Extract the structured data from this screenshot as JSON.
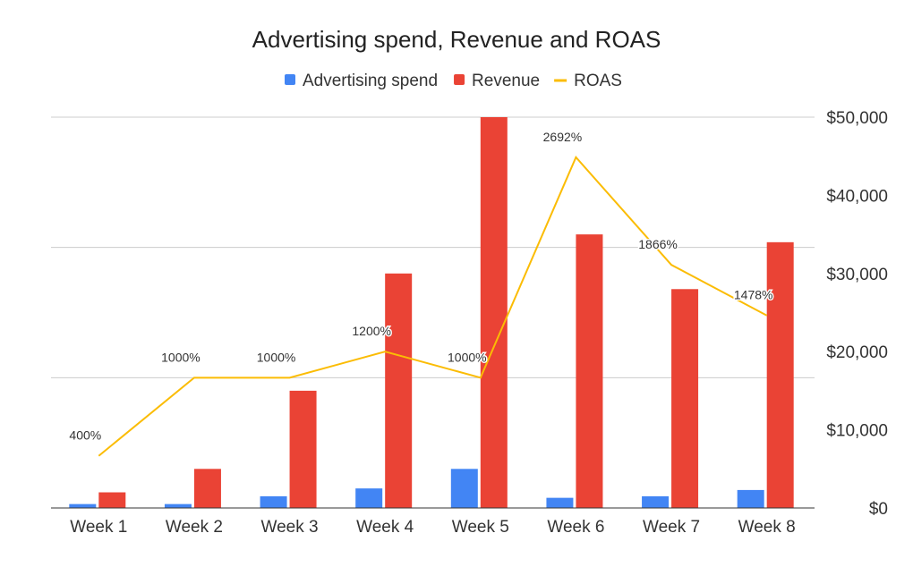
{
  "chart_data": {
    "type": "bar+line",
    "title": "Advertising spend, Revenue and ROAS",
    "categories": [
      "Week 1",
      "Week 2",
      "Week 3",
      "Week 4",
      "Week 5",
      "Week 6",
      "Week 7",
      "Week 8"
    ],
    "series": [
      {
        "name": "Advertising spend",
        "type": "bar",
        "axis": "right",
        "color": "#4285F4",
        "values": [
          500,
          500,
          1500,
          2500,
          5000,
          1300,
          1500,
          2300
        ]
      },
      {
        "name": "Revenue",
        "type": "bar",
        "axis": "right",
        "color": "#EA4335",
        "values": [
          2000,
          5000,
          15000,
          30000,
          50000,
          35000,
          28000,
          34000
        ]
      },
      {
        "name": "ROAS",
        "type": "line",
        "axis": "left-hidden",
        "color": "#FBBC04",
        "values": [
          400,
          1000,
          1000,
          1200,
          1000,
          2692,
          1866,
          1478
        ],
        "data_labels": [
          "400%",
          "1000%",
          "1000%",
          "1200%",
          "1000%",
          "2692%",
          "1866%",
          "1478%"
        ]
      }
    ],
    "right_axis": {
      "ylim": [
        0,
        50000
      ],
      "ticks": [
        "$0",
        "$10,000",
        "$20,000",
        "$30,000",
        "$40,000",
        "$50,000"
      ]
    },
    "left_axis": {
      "ylim": [
        0,
        3000
      ],
      "tick_values": [
        0,
        1000,
        2000,
        3000
      ],
      "labels_visible": false
    },
    "grid": true,
    "legend": "top"
  }
}
